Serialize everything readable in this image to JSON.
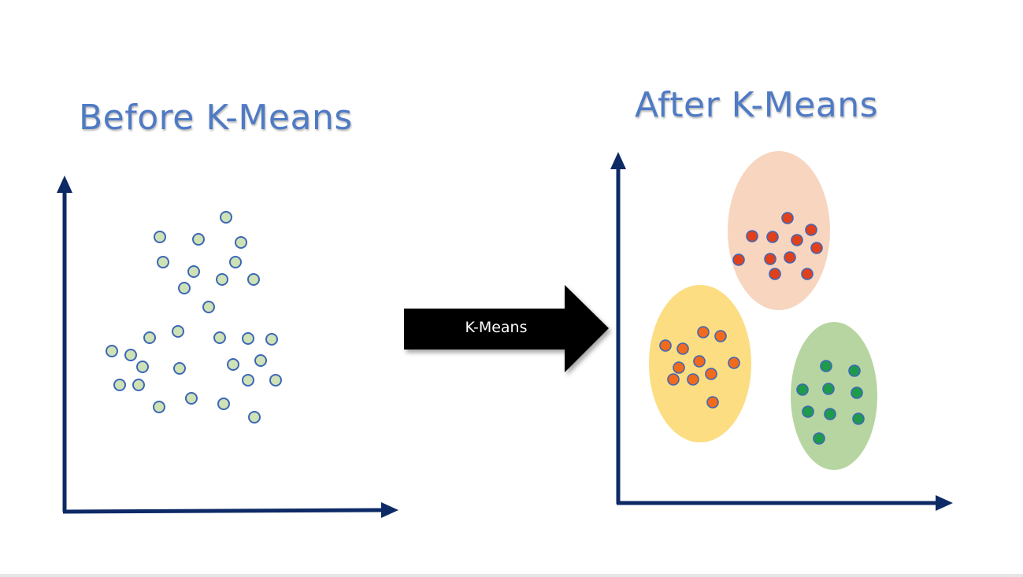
{
  "title_before": "Before K-Means",
  "title_after": "After K-Means",
  "arrow_label": "K-Means",
  "colors": {
    "title": "#4f7ac4",
    "axis": "#0e2a66",
    "point_stroke": "#3d67b7",
    "unclustered_fill": "#cfe2b5",
    "arrow": "#000000",
    "cluster_red_region": "#f7d5bf",
    "cluster_red_point": "#e0401c",
    "cluster_yellow_region": "#fcdd82",
    "cluster_yellow_point": "#f26a1b",
    "cluster_green_region": "#b6d5a1",
    "cluster_green_point": "#1e9a4b"
  }
}
